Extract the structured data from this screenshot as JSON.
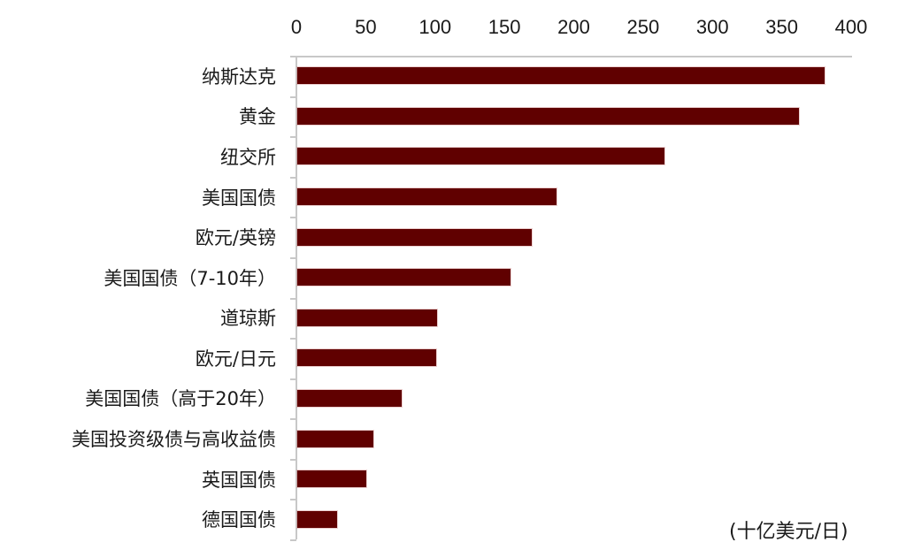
{
  "chart_data": {
    "type": "bar",
    "orientation": "horizontal",
    "title": "",
    "xlabel": "",
    "ylabel": "",
    "unit": "(十亿美元/日)",
    "xlim": [
      0,
      400
    ],
    "x_ticks": [
      "0",
      "50",
      "100",
      "150",
      "200",
      "250",
      "300",
      "350",
      "400"
    ],
    "x_axis_position": "top",
    "grid": false,
    "legend": null,
    "bar_color": "#600000",
    "categories": [
      "纳斯达克",
      "黄金",
      "纽交所",
      "美国国债",
      "欧元/英镑",
      "美国国债（7-10年）",
      "道琼斯",
      "欧元/日元",
      "美国国债（高于20年）",
      "美国投资级债与高收益债",
      "英国国债",
      "德国国债"
    ],
    "values": [
      380,
      362,
      265,
      187,
      169,
      154,
      101,
      100,
      75,
      55,
      50,
      29
    ]
  }
}
